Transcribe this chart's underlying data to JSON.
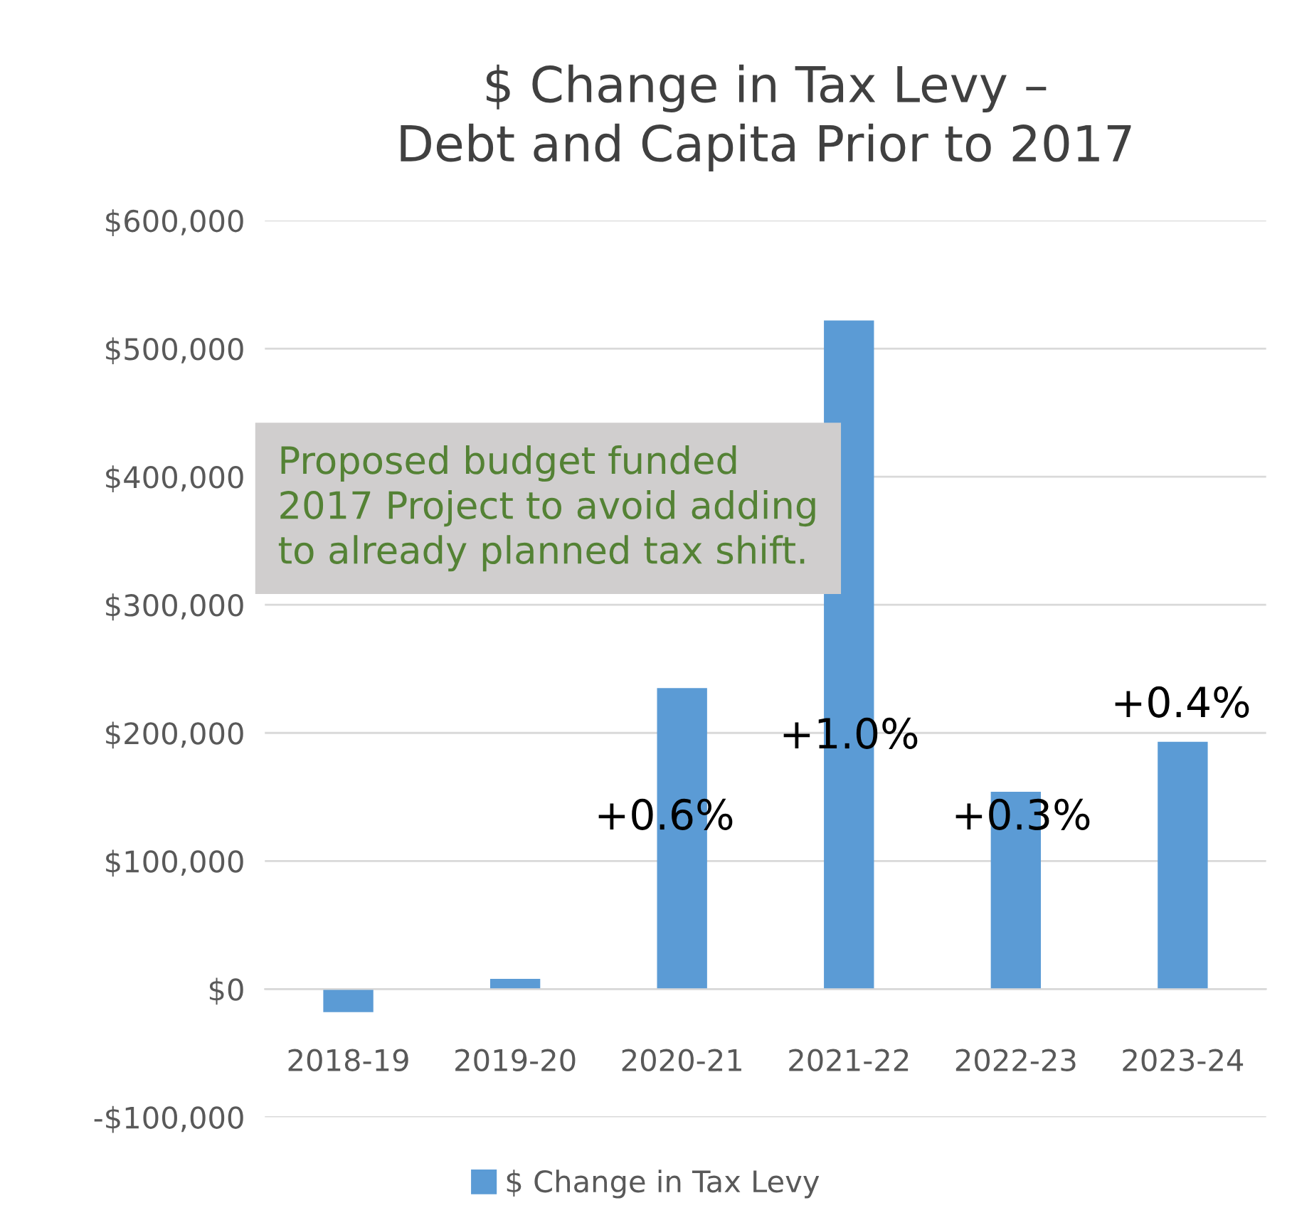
{
  "chart_data": {
    "type": "bar",
    "title": "$ Change in Tax Levy –\nDebt and Capita Prior to 2017",
    "categories": [
      "2018-19",
      "2019-20",
      "2020-21",
      "2021-22",
      "2022-23",
      "2023-24"
    ],
    "series": [
      {
        "name": "$ Change in Tax Levy",
        "color": "#5b9bd5",
        "values": [
          -18000,
          8000,
          235000,
          522000,
          154000,
          193000
        ]
      }
    ],
    "ylim": [
      -100000,
      600000
    ],
    "yticks": [
      {
        "value": -100000,
        "label": "-$100,000"
      },
      {
        "value": 0,
        "label": "$0"
      },
      {
        "value": 100000,
        "label": "$100,000"
      },
      {
        "value": 200000,
        "label": "$200,000"
      },
      {
        "value": 300000,
        "label": "$300,000"
      },
      {
        "value": 400000,
        "label": "$400,000"
      },
      {
        "value": 500000,
        "label": "$500,000"
      },
      {
        "value": 600000,
        "label": "$600,000"
      }
    ],
    "grid": "y",
    "legend": "bottom",
    "annotations": [
      "+0.6%",
      "+1.0%",
      "+0.3%",
      "+0.4%",
      "Proposed budget funded\n2017 Project to avoid adding\nto already planned tax shift."
    ]
  }
}
